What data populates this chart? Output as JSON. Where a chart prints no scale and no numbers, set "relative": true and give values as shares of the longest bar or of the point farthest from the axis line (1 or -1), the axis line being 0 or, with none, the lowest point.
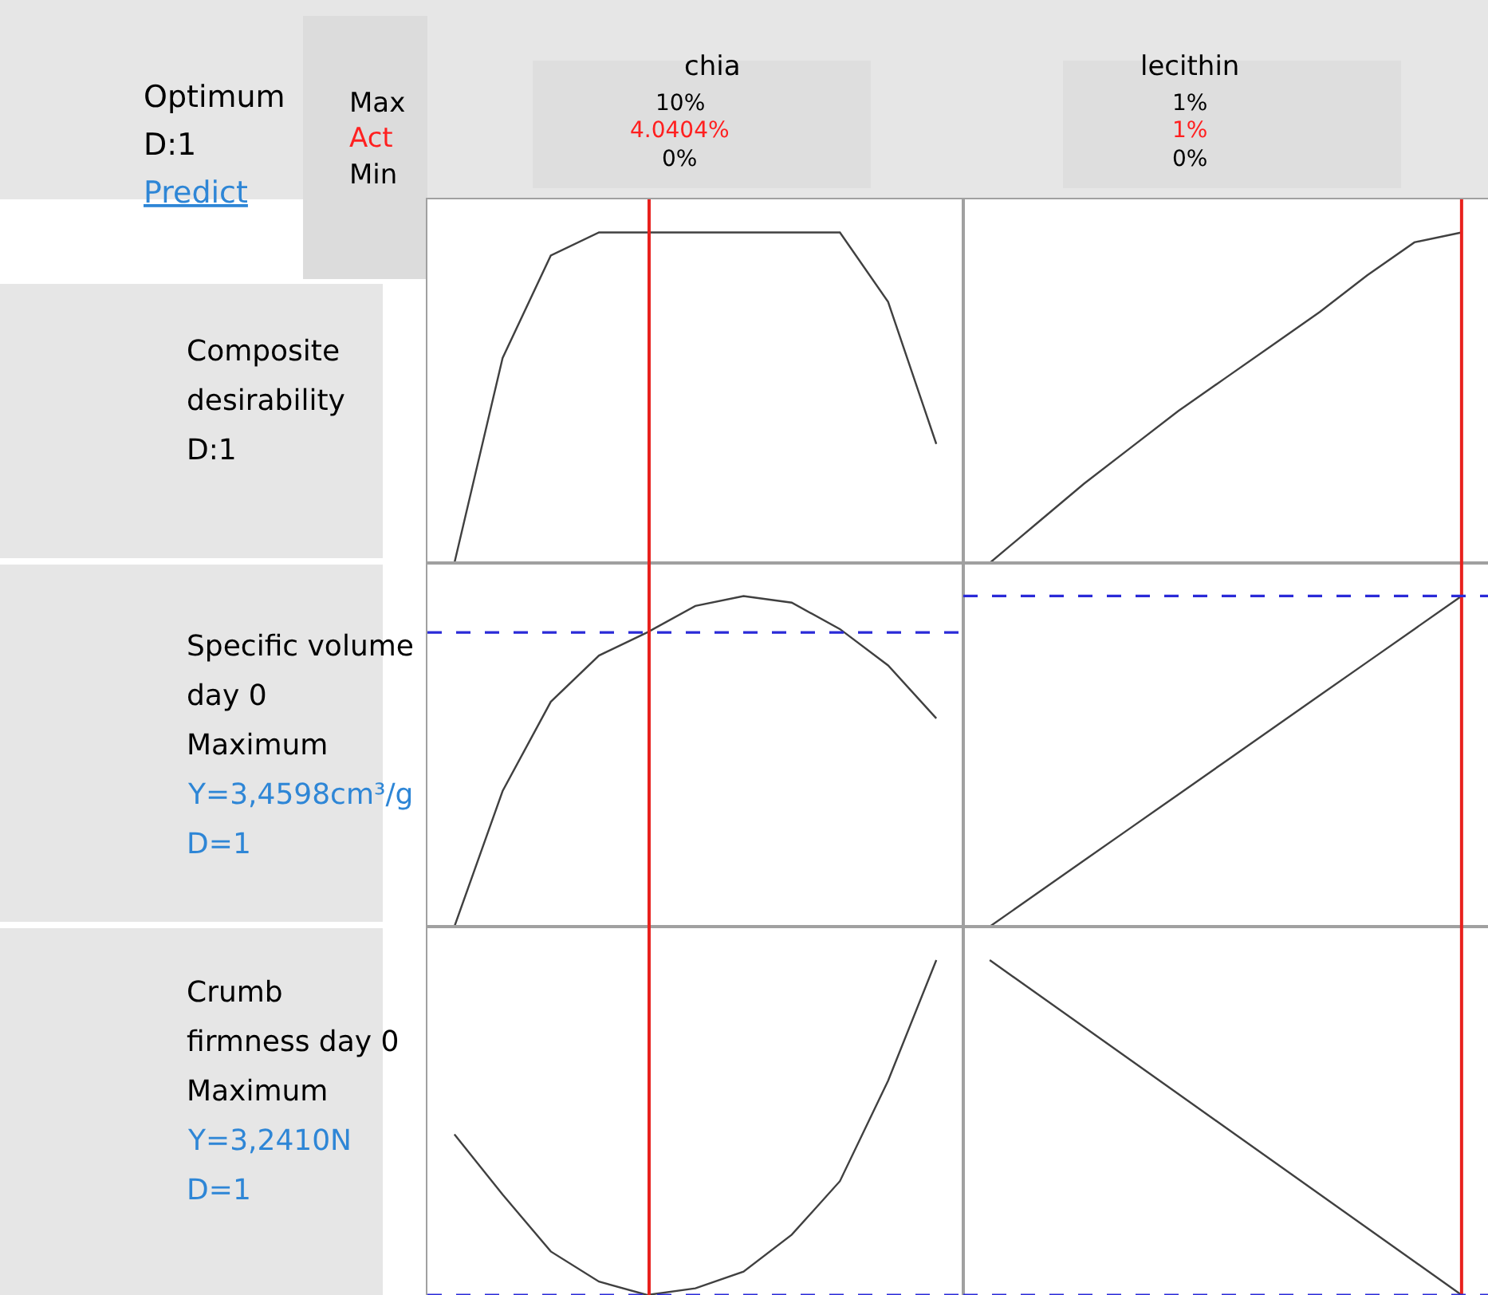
{
  "chart_data": [
    {
      "type": "other",
      "annotations": [
        "Optimum",
        "D:1",
        "Predict",
        "Max",
        "Act",
        "Min"
      ]
    },
    {
      "type": "line",
      "relative": true,
      "title": "chia",
      "ylabel": "Composite\ndesirability\nD:1",
      "annotations": [
        "10%",
        "4.0404%",
        "0%"
      ],
      "tick_labels": false,
      "grid": false,
      "marker": "none",
      "line_style": "solid",
      "categories": [
        null,
        null,
        null,
        null,
        null,
        null,
        null,
        null,
        null,
        null,
        null
      ],
      "series": [
        {
          "color": "#404040",
          "values": [
            0,
            0.62,
            0.93,
            1,
            1,
            1,
            1,
            1,
            1,
            0.79,
            0.36
          ]
        }
      ]
    },
    {
      "type": "line",
      "relative": true,
      "title": "lecithin",
      "annotations": [
        "1%",
        "1%",
        "0%"
      ],
      "tick_labels": false,
      "grid": false,
      "marker": "none",
      "line_style": "solid",
      "categories": [
        null,
        null,
        null,
        null,
        null,
        null,
        null,
        null,
        null,
        null,
        null
      ],
      "series": [
        {
          "color": "#404040",
          "values": [
            0,
            0.12,
            0.24,
            0.35,
            0.46,
            0.56,
            0.66,
            0.76,
            0.87,
            0.97,
            1
          ]
        }
      ]
    },
    {
      "type": "line",
      "relative": true,
      "ylabel": "Specific volume\nday 0\nMaximum",
      "annotations": [
        "Y=3,4598cm³/g",
        "D=1"
      ],
      "tick_labels": false,
      "grid": false,
      "marker": "none",
      "line_style": "solid",
      "categories": [
        null,
        null,
        null,
        null,
        null,
        null,
        null,
        null,
        null,
        null,
        null
      ],
      "series": [
        {
          "color": "#404040",
          "values": [
            0,
            0.41,
            0.68,
            0.82,
            0.89,
            0.97,
            1,
            0.98,
            0.9,
            0.79,
            0.63
          ]
        }
      ],
      "ref_lines": [
        {
          "axis": "y",
          "value": 0.89,
          "color": "#2a2ad8",
          "line_style": "dashed"
        }
      ]
    },
    {
      "type": "line",
      "relative": true,
      "tick_labels": false,
      "grid": false,
      "marker": "none",
      "line_style": "solid",
      "categories": [
        null,
        null,
        null,
        null,
        null,
        null,
        null,
        null,
        null,
        null,
        null
      ],
      "series": [
        {
          "color": "#404040",
          "values": [
            0,
            0.1,
            0.2,
            0.3,
            0.4,
            0.5,
            0.6,
            0.7,
            0.8,
            0.9,
            1
          ]
        }
      ],
      "ref_lines": [
        {
          "axis": "y",
          "value": 1,
          "color": "#2a2ad8",
          "line_style": "dashed"
        }
      ]
    },
    {
      "type": "line",
      "relative": true,
      "ylabel": "Crumb\nfirmness day 0\nMaximum",
      "annotations": [
        "Y=3,2410N",
        "D=1"
      ],
      "tick_labels": false,
      "grid": false,
      "marker": "none",
      "line_style": "solid",
      "categories": [
        null,
        null,
        null,
        null,
        null,
        null,
        null,
        null,
        null,
        null,
        null
      ],
      "series": [
        {
          "color": "#404040",
          "values": [
            0.48,
            0.3,
            0.13,
            0.04,
            0,
            0.02,
            0.07,
            0.18,
            0.34,
            0.64,
            1
          ]
        }
      ],
      "ref_lines": [
        {
          "axis": "y",
          "value": 0,
          "color": "#2a2ad8",
          "line_style": "dashed"
        }
      ]
    },
    {
      "type": "line",
      "relative": true,
      "tick_labels": false,
      "grid": false,
      "marker": "none",
      "line_style": "solid",
      "categories": [
        null,
        null,
        null,
        null,
        null,
        null,
        null,
        null,
        null,
        null,
        null
      ],
      "series": [
        {
          "color": "#404040",
          "values": [
            1,
            0.9,
            0.8,
            0.7,
            0.6,
            0.5,
            0.4,
            0.3,
            0.2,
            0.1,
            0
          ]
        }
      ],
      "ref_lines": [
        {
          "axis": "y",
          "value": 0,
          "color": "#2a2ad8",
          "line_style": "dashed"
        }
      ]
    }
  ]
}
